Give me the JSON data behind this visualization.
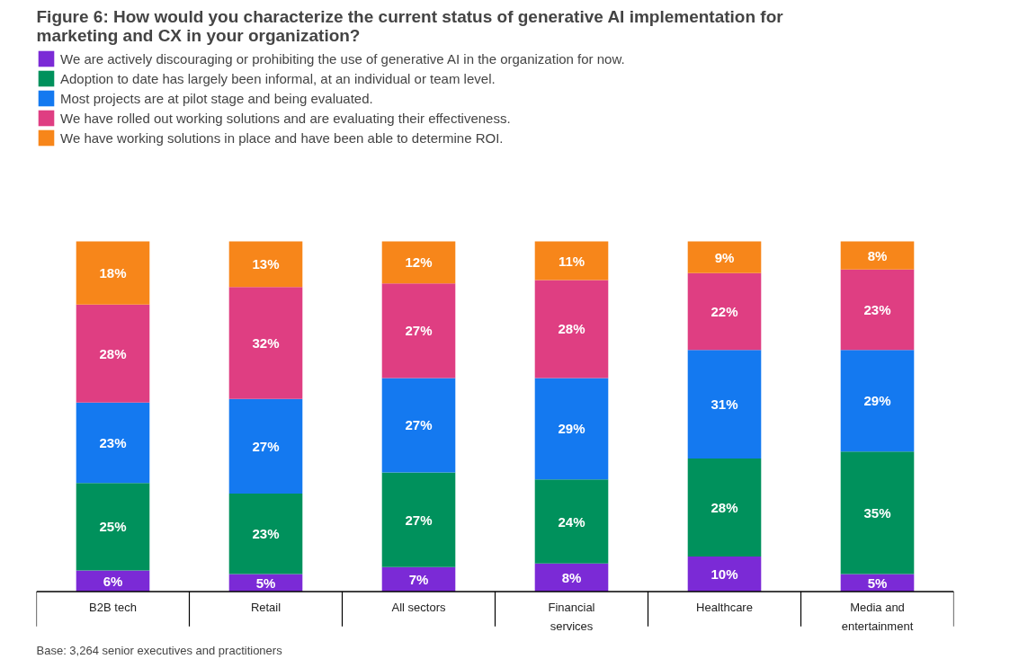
{
  "chart_data": {
    "type": "bar",
    "stacked": true,
    "legend": "top left",
    "grid": false,
    "title": "Figure 6: How would you characterize the current status of generative AI implementation for marketing and CX in your organization?",
    "categories": [
      "B2B tech",
      "Retail",
      "All sectors",
      "Financial services",
      "Healthcare",
      "Media and entertainment"
    ],
    "series": [
      {
        "name": "We are actively discouraging or prohibiting the use of generative AI in the organization for now.",
        "color": "#7b2ad6",
        "values": [
          6,
          5,
          7,
          8,
          10,
          5
        ],
        "value_labels": [
          "6%",
          "5%",
          "7%",
          "8%",
          "10%",
          "5%"
        ]
      },
      {
        "name": "Adoption to date has largely been informal, at an individual or team level.",
        "color": "#00915c",
        "values": [
          25,
          23,
          27,
          24,
          28,
          35
        ],
        "value_labels": [
          "25%",
          "23%",
          "27%",
          "24%",
          "28%",
          "35%"
        ]
      },
      {
        "name": "Most projects are at pilot stage and being evaluated.",
        "color": "#1479f0",
        "values": [
          23,
          27,
          27,
          29,
          31,
          29
        ],
        "value_labels": [
          "23%",
          "27%",
          "27%",
          "29%",
          "31%",
          "29%"
        ]
      },
      {
        "name": "We have rolled out working solutions and are evaluating their effectiveness.",
        "color": "#df3e82",
        "values": [
          28,
          32,
          27,
          28,
          22,
          23
        ],
        "value_labels": [
          "28%",
          "32%",
          "27%",
          "28%",
          "22%",
          "23%"
        ]
      },
      {
        "name": "We have working solutions in place and have been able to determine ROI.",
        "color": "#f7861a",
        "values": [
          18,
          13,
          12,
          11,
          9,
          8
        ],
        "value_labels": [
          "18%",
          "13%",
          "12%",
          "11%",
          "9%",
          "8%"
        ]
      }
    ],
    "annotations": [
      "Base: 3,264 senior executives and practitioners"
    ]
  }
}
